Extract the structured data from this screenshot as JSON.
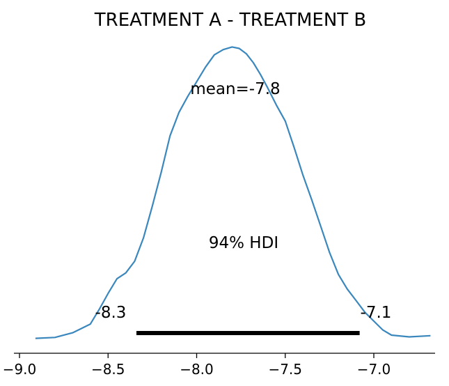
{
  "chart_data": {
    "type": "line",
    "title": "TREATMENT A - TREATMENT B",
    "xlabel": "",
    "ylabel": "",
    "xlim": [
      -9.05,
      -6.66
    ],
    "xticks": [
      -9.0,
      -8.5,
      -8.0,
      -7.5,
      -7.0
    ],
    "xtick_labels": [
      "−9.0",
      "−8.5",
      "−8.0",
      "−7.5",
      "−7.0"
    ],
    "yaxis_visible": false,
    "grid": false,
    "series": [
      {
        "color": "#3a87bd",
        "x": [
          -8.91,
          -8.8,
          -8.7,
          -8.6,
          -8.55,
          -8.5,
          -8.45,
          -8.4,
          -8.35,
          -8.3,
          -8.25,
          -8.2,
          -8.15,
          -8.1,
          -8.05,
          -8.0,
          -7.95,
          -7.9,
          -7.85,
          -7.8,
          -7.76,
          -7.72,
          -7.68,
          -7.64,
          -7.6,
          -7.55,
          -7.5,
          -7.45,
          -7.4,
          -7.35,
          -7.3,
          -7.25,
          -7.2,
          -7.15,
          -7.1,
          -7.05,
          -7.0,
          -6.95,
          -6.9,
          -6.8,
          -6.68
        ],
        "y": [
          0.001,
          0.004,
          0.02,
          0.05,
          0.1,
          0.155,
          0.205,
          0.225,
          0.265,
          0.345,
          0.455,
          0.57,
          0.695,
          0.775,
          0.83,
          0.88,
          0.93,
          0.972,
          0.99,
          0.999,
          0.994,
          0.976,
          0.945,
          0.905,
          0.86,
          0.8,
          0.745,
          0.655,
          0.56,
          0.475,
          0.385,
          0.295,
          0.22,
          0.17,
          0.13,
          0.09,
          0.06,
          0.03,
          0.012,
          0.006,
          0.01
        ]
      }
    ],
    "annotations": {
      "mean_text": "mean=-7.8",
      "hdi_label": "94% HDI",
      "hdi_low_label": "-8.3",
      "hdi_high_label": "-7.1"
    },
    "hdi": {
      "low": -8.34,
      "high": -7.08,
      "color": "#000000"
    }
  }
}
